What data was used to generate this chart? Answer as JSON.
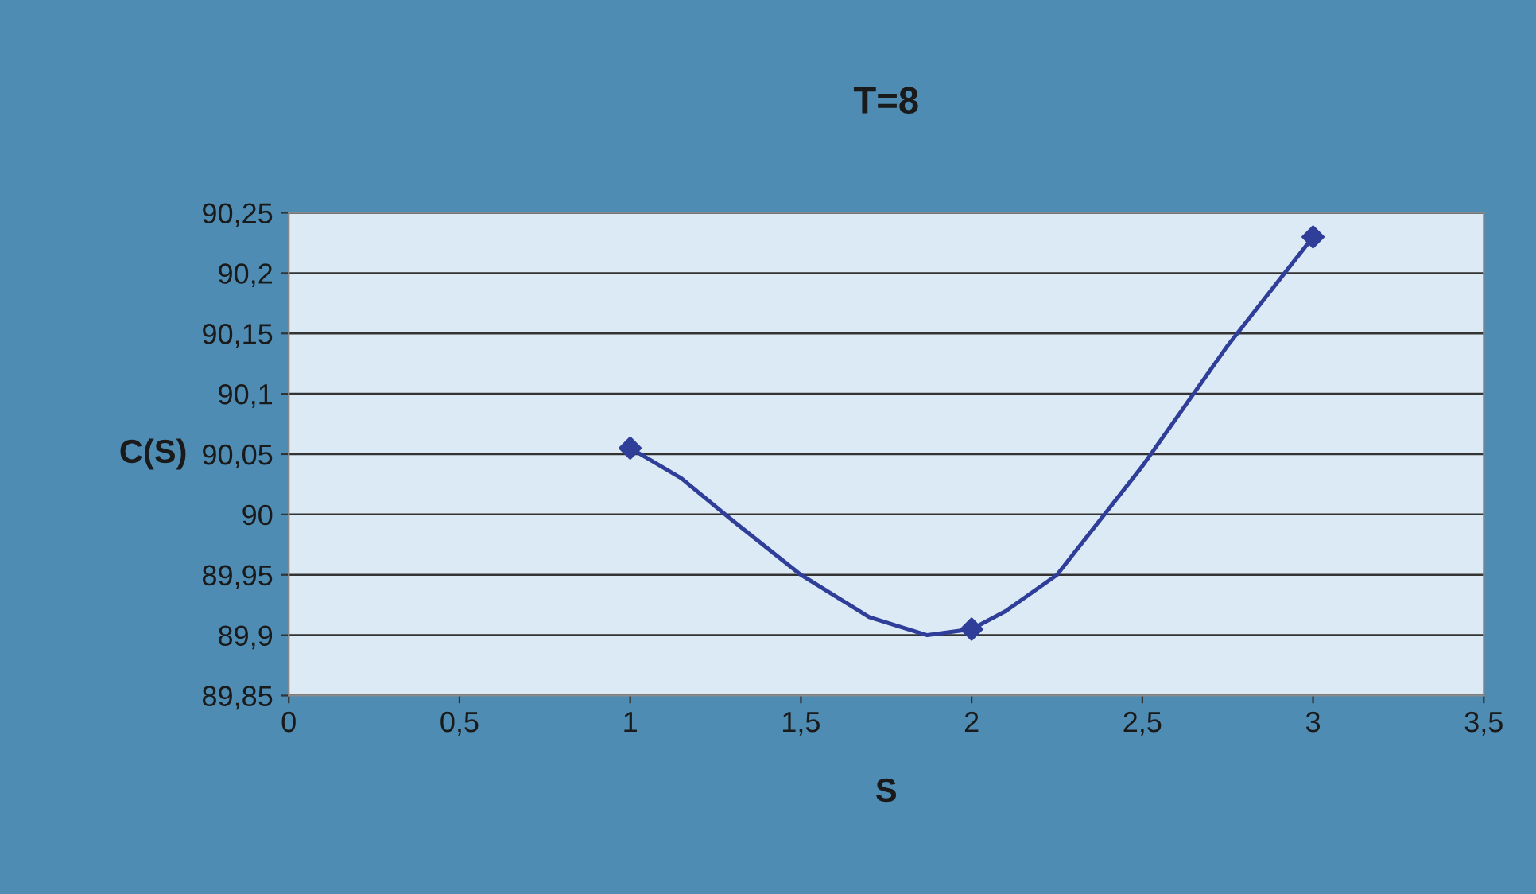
{
  "chart_data": {
    "type": "line",
    "title": "T=8",
    "xlabel": "S",
    "ylabel": "C(S)",
    "series": [
      {
        "color": "#2f3f99",
        "marker": "none",
        "x": [
          1,
          1.15,
          1.3,
          1.5,
          1.7,
          1.87,
          2,
          2.1,
          2.25,
          2.5,
          2.75,
          3
        ],
        "values": [
          90.055,
          90.03,
          89.995,
          89.95,
          89.915,
          89.9,
          89.905,
          89.92,
          89.95,
          90.04,
          90.14,
          90.23
        ]
      },
      {
        "type": "scatter",
        "color": "#2f3f99",
        "marker": "diamond",
        "x": [
          1,
          2,
          3
        ],
        "values": [
          90.055,
          89.905,
          90.23
        ]
      }
    ],
    "xlim": [
      0,
      3.5
    ],
    "xticks": [
      0,
      {
        "value": 0.5,
        "label": "0,5"
      },
      1,
      {
        "value": 1.5,
        "label": "1,5"
      },
      2,
      {
        "value": 2.5,
        "label": "2,5"
      },
      3,
      {
        "value": 3.5,
        "label": "3,5"
      }
    ],
    "ylim": [
      89.85,
      90.25
    ],
    "yticks": [
      {
        "value": 89.85,
        "label": "89,85"
      },
      {
        "value": 89.9,
        "label": "89,9"
      },
      {
        "value": 89.95,
        "label": "89,95"
      },
      {
        "value": 90,
        "label": "90"
      },
      {
        "value": 90.05,
        "label": "90,05"
      },
      {
        "value": 90.1,
        "label": "90,1"
      },
      {
        "value": 90.15,
        "label": "90,15"
      },
      {
        "value": 90.2,
        "label": "90,2"
      },
      {
        "value": 90.25,
        "label": "90,25"
      }
    ],
    "grid": "y"
  }
}
